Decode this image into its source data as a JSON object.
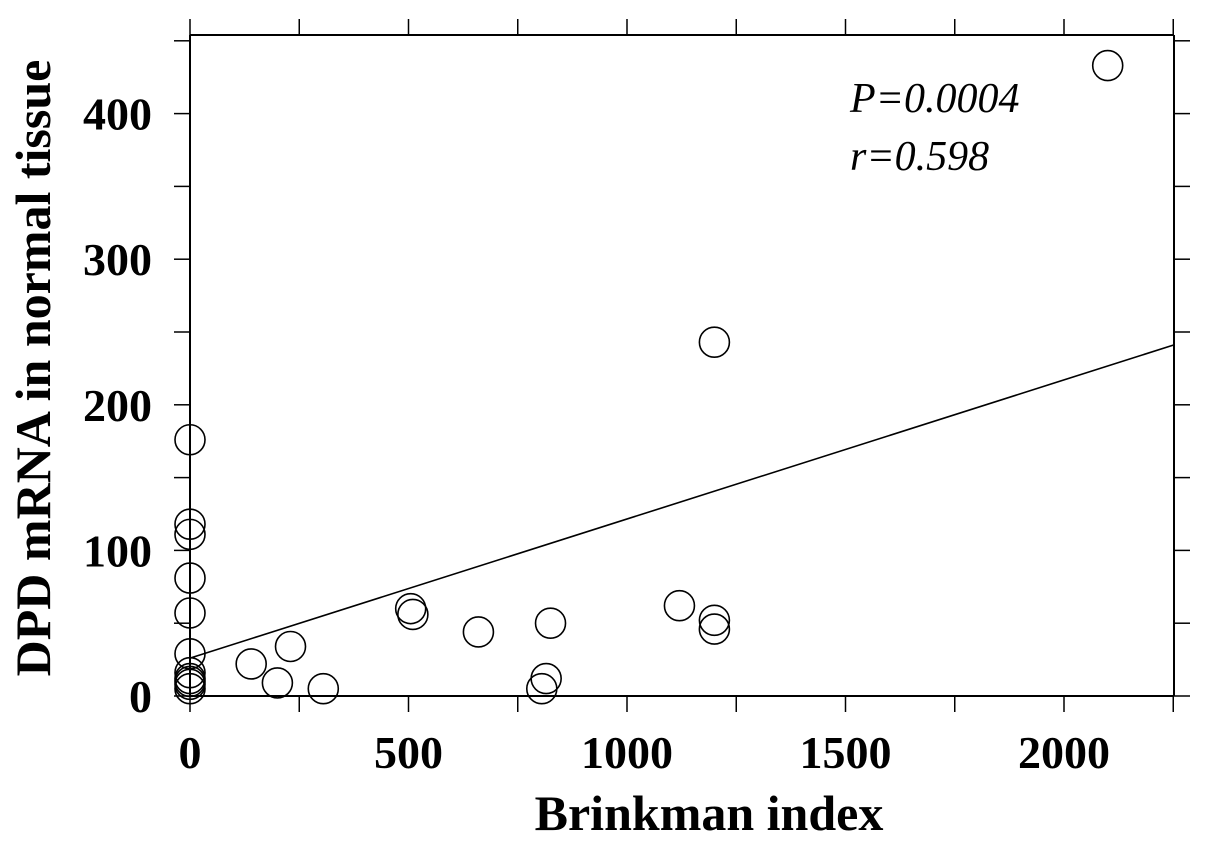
{
  "chart_data": {
    "type": "scatter",
    "xlabel": "Brinkman index",
    "ylabel": "DPD mRNA  in normal tissue",
    "xlim": [
      0,
      2250
    ],
    "ylim": [
      0,
      455
    ],
    "x_ticks": [
      0,
      500,
      1000,
      1500,
      2000
    ],
    "y_ticks": [
      0,
      100,
      200,
      300,
      400
    ],
    "annotations": [
      "P=0.0004",
      "r=0.598"
    ],
    "regression_line": {
      "x": [
        0,
        2250
      ],
      "y": [
        26,
        241
      ]
    },
    "points": {
      "x": [
        2100,
        1200,
        0,
        0,
        0,
        0,
        0,
        0,
        0,
        0,
        0,
        0,
        0,
        140,
        200,
        230,
        305,
        505,
        510,
        660,
        825,
        815,
        805,
        1120,
        1200,
        1200
      ],
      "y": [
        433,
        243,
        176,
        118,
        111,
        81,
        57,
        29,
        16,
        12,
        10,
        8,
        5,
        22,
        9,
        34,
        5,
        60,
        56,
        44,
        50,
        12,
        5,
        62,
        52,
        46
      ]
    },
    "grid": false
  }
}
